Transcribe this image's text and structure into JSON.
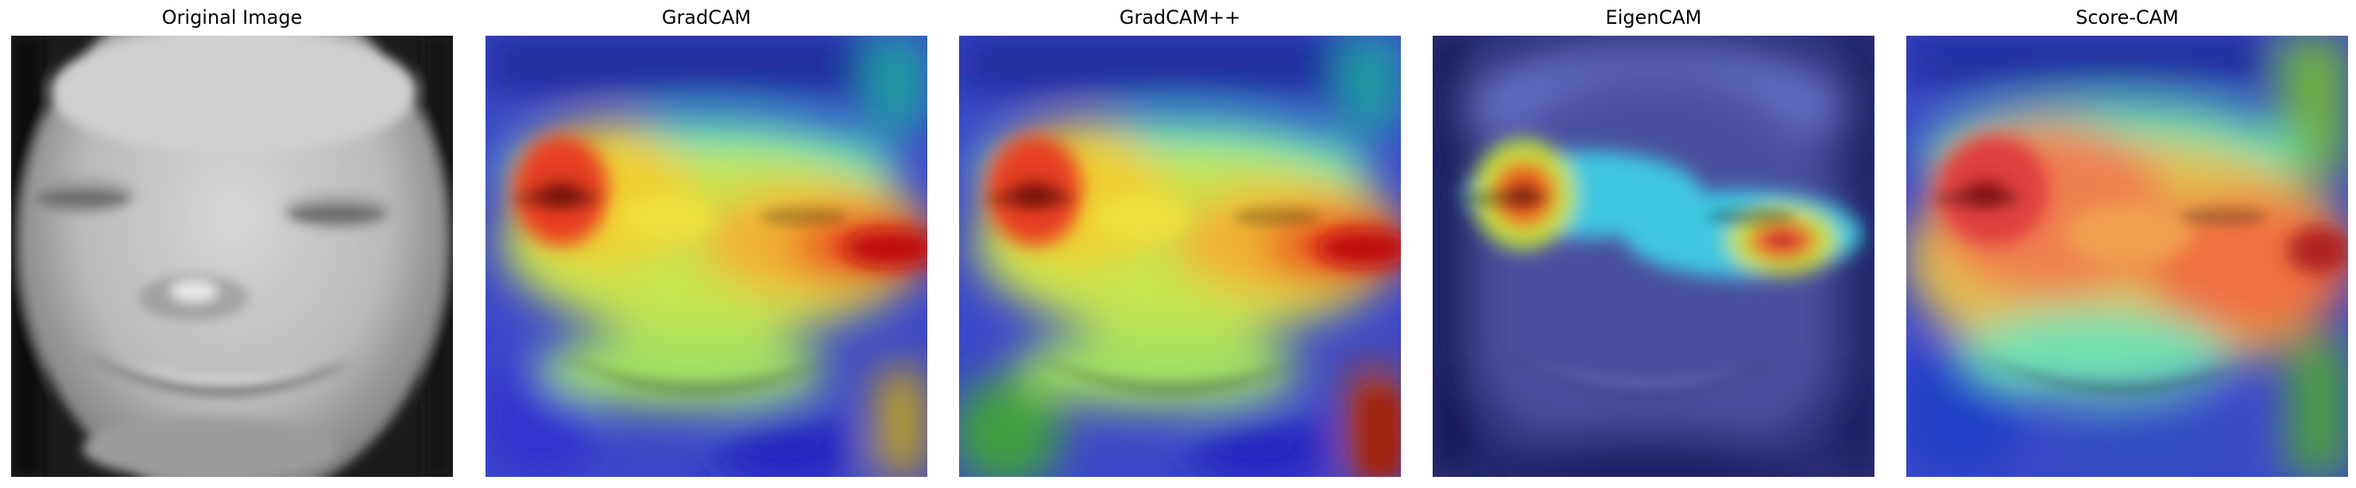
{
  "figure": {
    "panels": [
      {
        "id": "original",
        "title": "Original Image",
        "kind": "grayscale-face-photo"
      },
      {
        "id": "gradcam",
        "title": "GradCAM",
        "kind": "heatmap-overlay"
      },
      {
        "id": "gradcampp",
        "title": "GradCAM++",
        "kind": "heatmap-overlay"
      },
      {
        "id": "eigencam",
        "title": "EigenCAM",
        "kind": "heatmap-overlay"
      },
      {
        "id": "scorecam",
        "title": "Score-CAM",
        "kind": "heatmap-overlay"
      }
    ],
    "colormap": [
      "#00007f",
      "#0000ff",
      "#00ffff",
      "#ffff00",
      "#ff0000",
      "#7f0000"
    ]
  }
}
